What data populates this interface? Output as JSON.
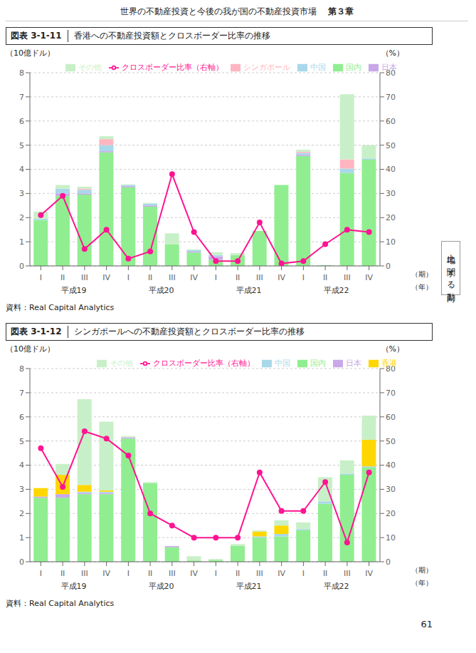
{
  "annotations": [
    "世界の不動産投資と今後の我が国の不動産投資市場",
    "第３章",
    "土地に関する動向",
    "61"
  ],
  "chart_data": [
    {
      "type": "bar",
      "stacked": true,
      "grid": true,
      "legend": "upper right",
      "title": "香港への不動産投資額とクロスボーダー比率の推移",
      "annotations": [
        "図表 3-1-11",
        "（年）",
        "資料：Real Capital Analytics"
      ],
      "xlabel": "（期）",
      "ylabel": "（10億ドル）",
      "y2label": "（%）",
      "categories": [
        "I",
        "II",
        "III",
        "IV",
        "I",
        "II",
        "III",
        "IV",
        "I",
        "II",
        "III",
        "IV",
        "I",
        "II",
        "III",
        "IV"
      ],
      "category_groups": [
        "平成19",
        "平成20",
        "平成21",
        "平成22"
      ],
      "ylim": [
        0,
        8
      ],
      "yticks": [
        0,
        1,
        2,
        3,
        4,
        5,
        6,
        7,
        8
      ],
      "y2lim": [
        0,
        80
      ],
      "y2ticks": [
        0,
        10,
        20,
        30,
        40,
        50,
        60,
        70,
        80
      ],
      "series": [
        {
          "name": "国内",
          "type": "bar",
          "color": "#90EE90",
          "values": [
            1.9,
            2.9,
            2.95,
            4.7,
            3.25,
            2.45,
            0.9,
            0.55,
            0.25,
            0.45,
            1.45,
            3.35,
            4.55,
            0.03,
            3.85,
            4.4
          ]
        },
        {
          "name": "日本",
          "type": "bar",
          "color": "#C8A8E8",
          "values": [
            0.0,
            0.1,
            0.05,
            0.05,
            0.05,
            0.05,
            0.0,
            0.05,
            0.15,
            0.0,
            0.0,
            0.0,
            0.05,
            0.0,
            0.0,
            0.0
          ]
        },
        {
          "name": "中国",
          "type": "bar",
          "color": "#A8D8EA",
          "values": [
            0.05,
            0.2,
            0.15,
            0.25,
            0.05,
            0.08,
            0.0,
            0.05,
            0.05,
            0.0,
            0.0,
            0.0,
            0.08,
            0.0,
            0.18,
            0.05
          ]
        },
        {
          "name": "シンガポール",
          "type": "bar",
          "color": "#FFB6C1",
          "values": [
            0.0,
            0.0,
            0.05,
            0.25,
            0.0,
            0.0,
            0.0,
            0.0,
            0.0,
            0.0,
            0.0,
            0.0,
            0.05,
            0.0,
            0.38,
            0.0
          ]
        },
        {
          "name": "その他",
          "type": "bar",
          "color": "#C8F0C8",
          "values": [
            0.3,
            0.15,
            0.08,
            0.12,
            0.03,
            0.03,
            0.45,
            0.03,
            0.12,
            0.08,
            0.0,
            0.0,
            0.08,
            0.0,
            2.7,
            0.55
          ]
        },
        {
          "name": "クロスボーダー比率（右軸）",
          "type": "line",
          "axis": "y2",
          "marker": "o",
          "color": "#FF1493",
          "values": [
            21,
            29,
            7,
            15,
            3,
            6,
            38,
            14,
            2,
            2,
            18,
            1,
            2,
            9,
            15,
            14
          ]
        }
      ]
    },
    {
      "type": "bar",
      "stacked": true,
      "grid": true,
      "legend": "upper right",
      "title": "シンガポールへの不動産投資額とクロスボーダー比率の推移",
      "annotations": [
        "図表 3-1-12",
        "（年）",
        "資料：Real Capital Analytics"
      ],
      "xlabel": "（期）",
      "ylabel": "（10億ドル）",
      "y2label": "（%）",
      "categories": [
        "I",
        "II",
        "III",
        "IV",
        "I",
        "II",
        "III",
        "IV",
        "I",
        "II",
        "III",
        "IV",
        "I",
        "II",
        "III",
        "IV"
      ],
      "category_groups": [
        "平成19",
        "平成20",
        "平成21",
        "平成22"
      ],
      "ylim": [
        0,
        8
      ],
      "yticks": [
        0,
        1,
        2,
        3,
        4,
        5,
        6,
        7,
        8
      ],
      "y2lim": [
        0,
        80
      ],
      "y2ticks": [
        0,
        10,
        20,
        30,
        40,
        50,
        60,
        70,
        80
      ],
      "series": [
        {
          "name": "国内",
          "type": "bar",
          "color": "#90EE90",
          "values": [
            2.65,
            2.65,
            2.8,
            2.8,
            5.1,
            3.25,
            0.6,
            0.05,
            0.07,
            0.65,
            1.0,
            1.05,
            1.3,
            2.4,
            3.6,
            3.9
          ]
        },
        {
          "name": "日本",
          "type": "bar",
          "color": "#C8A8E8",
          "values": [
            0.05,
            0.15,
            0.05,
            0.05,
            0.05,
            0.0,
            0.05,
            0.0,
            0.0,
            0.0,
            0.0,
            0.0,
            0.0,
            0.0,
            0.0,
            0.0
          ]
        },
        {
          "name": "中国",
          "type": "bar",
          "color": "#A8D8EA",
          "values": [
            0.0,
            0.0,
            0.05,
            0.05,
            0.0,
            0.0,
            0.0,
            0.0,
            0.0,
            0.0,
            0.05,
            0.1,
            0.05,
            0.1,
            0.05,
            0.05
          ]
        },
        {
          "name": "香港",
          "type": "bar",
          "color": "#FFD700",
          "values": [
            0.35,
            0.8,
            0.28,
            0.05,
            0.0,
            0.0,
            0.0,
            0.0,
            0.0,
            0.0,
            0.2,
            0.35,
            0.0,
            0.0,
            0.0,
            1.1
          ]
        },
        {
          "name": "その他",
          "type": "bar",
          "color": "#C8F0C8",
          "values": [
            0.0,
            0.45,
            3.55,
            2.85,
            0.05,
            0.05,
            0.0,
            0.18,
            0.05,
            0.08,
            0.05,
            0.22,
            0.28,
            1.0,
            0.55,
            1.0
          ]
        },
        {
          "name": "クロスボーダー比率（右軸）",
          "type": "line",
          "axis": "y2",
          "marker": "o",
          "color": "#FF1493",
          "values": [
            47,
            31,
            54,
            51,
            44,
            20,
            15,
            10,
            10,
            10,
            37,
            21,
            21,
            33,
            8,
            37
          ]
        }
      ]
    }
  ]
}
